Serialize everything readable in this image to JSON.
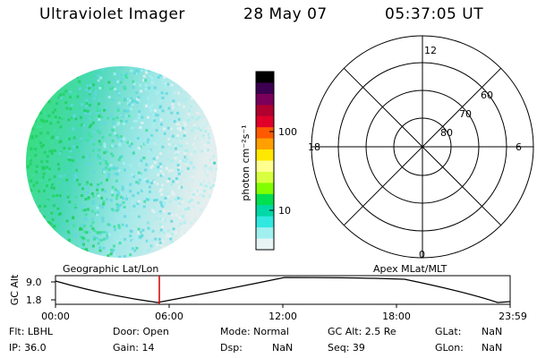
{
  "header": {
    "app_title": "Ultraviolet Imager",
    "date": "28 May 07",
    "time": "05:37:05 UT"
  },
  "colorbar": {
    "label": "photon cm⁻²s⁻¹",
    "ticks": [
      "100",
      "10"
    ],
    "colors": [
      "#000000",
      "#3b0050",
      "#7a005a",
      "#b00030",
      "#e0002a",
      "#ff5a00",
      "#ffa000",
      "#ffe800",
      "#ffff90",
      "#d8ff40",
      "#80ff00",
      "#00e050",
      "#00d8a8",
      "#30e8e0",
      "#a0f0f0",
      "#e8f4f4"
    ]
  },
  "polar": {
    "hour_labels": {
      "top": "12",
      "left": "18",
      "right": "6",
      "bottom": "0"
    },
    "lat_labels": [
      "60",
      "70",
      "80"
    ]
  },
  "timeline": {
    "left_label": "Geographic Lat/Lon",
    "right_label": "Apex MLat/MLT",
    "y_axis_title": "GC Alt",
    "y_ticks": [
      "9.0",
      "1.8"
    ],
    "x_ticks": [
      "00:00",
      "06:00",
      "12:00",
      "18:00",
      "23:59"
    ]
  },
  "info": {
    "flt": "Flt: LBHL",
    "ip": "IP: 36.0",
    "door": "Door: Open",
    "gain": "Gain: 14",
    "mode": "Mode: Normal",
    "dsp_label": "Dsp:",
    "dsp_value": "NaN",
    "gc_alt": "GC Alt: 2.5 Re",
    "seq": "Seq: 39",
    "glat_label": "GLat:",
    "glat_value": "NaN",
    "glon_label": "GLon:",
    "glon_value": "NaN"
  }
}
